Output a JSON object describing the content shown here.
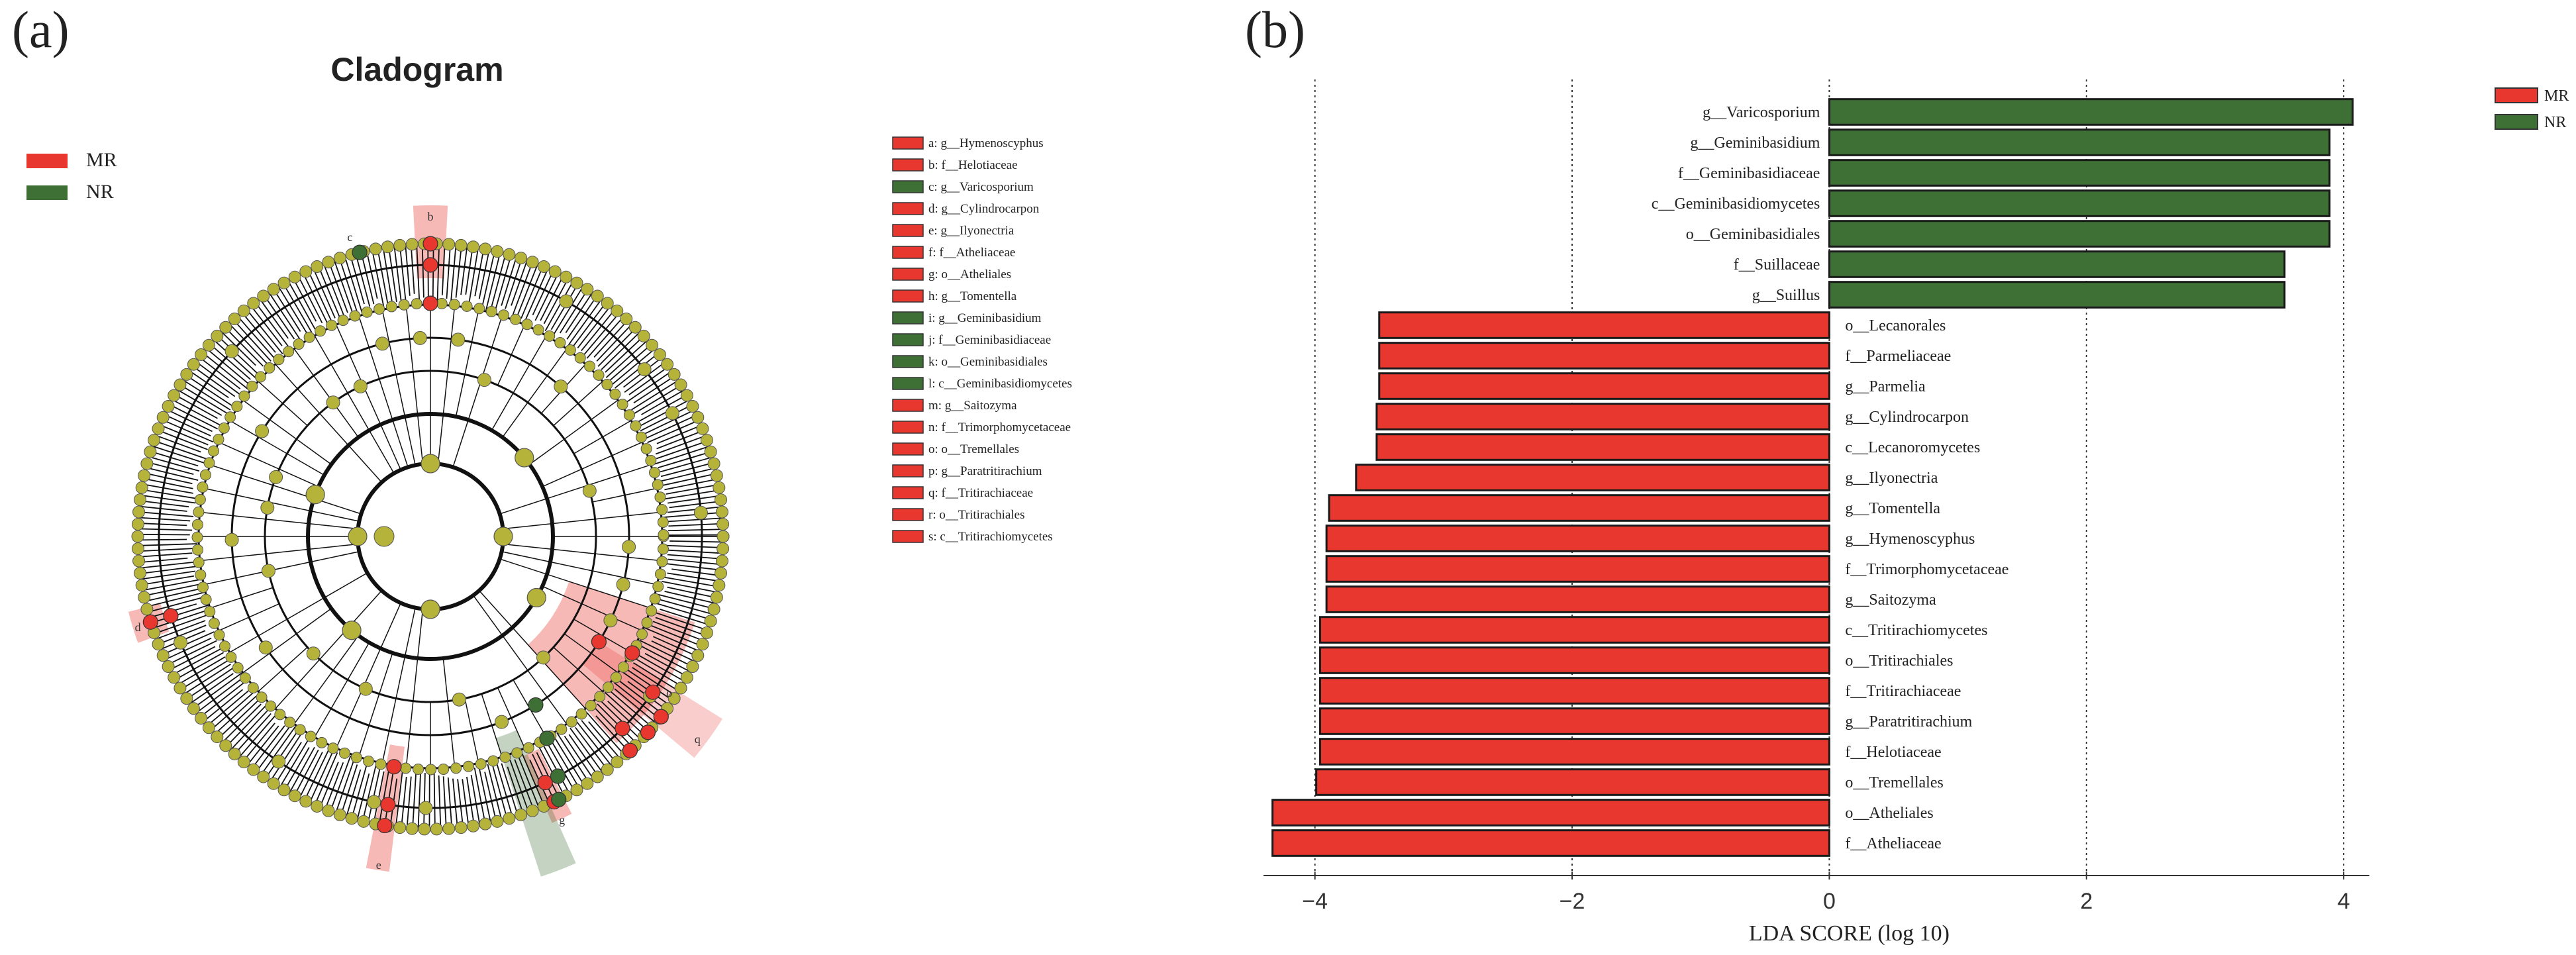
{
  "panels": {
    "a_label": "(a)",
    "b_label": "(b)"
  },
  "colors": {
    "MR": "#e8372f",
    "NR": "#3e6f35",
    "node": "#b5b33a",
    "edge": "#111111"
  },
  "chart_data": [
    {
      "type": "cladogram",
      "title": "Cladogram",
      "legend": [
        {
          "name": "MR",
          "color": "#e8372f"
        },
        {
          "name": "NR",
          "color": "#3e6f35"
        }
      ],
      "highlighted_taxa": [
        {
          "key": "a",
          "label": "a: g__Hymenoscyphus",
          "group": "MR"
        },
        {
          "key": "b",
          "label": "b: f__Helotiaceae",
          "group": "MR"
        },
        {
          "key": "c",
          "label": "c: g__Varicosporium",
          "group": "NR"
        },
        {
          "key": "d",
          "label": "d: g__Cylindrocarpon",
          "group": "MR"
        },
        {
          "key": "e",
          "label": "e: g__Ilyonectria",
          "group": "MR"
        },
        {
          "key": "f",
          "label": "f: f__Atheliaceae",
          "group": "MR"
        },
        {
          "key": "g",
          "label": "g: o__Atheliales",
          "group": "MR"
        },
        {
          "key": "h",
          "label": "h: g__Tomentella",
          "group": "MR"
        },
        {
          "key": "i",
          "label": "i: g__Geminibasidium",
          "group": "NR"
        },
        {
          "key": "j",
          "label": "j: f__Geminibasidiaceae",
          "group": "NR"
        },
        {
          "key": "k",
          "label": "k: o__Geminibasidiales",
          "group": "NR"
        },
        {
          "key": "l",
          "label": "l: c__Geminibasidiomycetes",
          "group": "NR"
        },
        {
          "key": "m",
          "label": "m: g__Saitozyma",
          "group": "MR"
        },
        {
          "key": "n",
          "label": "n: f__Trimorphomycetaceae",
          "group": "MR"
        },
        {
          "key": "o",
          "label": "o: o__Tremellales",
          "group": "MR"
        },
        {
          "key": "p",
          "label": "p: g__Paratritirachium",
          "group": "MR"
        },
        {
          "key": "q",
          "label": "q: f__Tritirachiaceae",
          "group": "MR"
        },
        {
          "key": "r",
          "label": "r: o__Tritirachiales",
          "group": "MR"
        },
        {
          "key": "s",
          "label": "s: c__Tritirachiomycetes",
          "group": "MR"
        }
      ]
    },
    {
      "type": "bar",
      "orientation": "horizontal",
      "xlabel": "LDA SCORE (log 10)",
      "xlim": [
        -4.4,
        4.2
      ],
      "xticks": [
        -4,
        -2,
        0,
        2,
        4
      ],
      "xtick_labels": [
        "−4",
        "−2",
        "0",
        "2",
        "4"
      ],
      "grid": "vertical dotted",
      "legend_position": "top-right",
      "legend": [
        {
          "name": "MR",
          "color": "#e8372f"
        },
        {
          "name": "NR",
          "color": "#3e6f35"
        }
      ],
      "bars": [
        {
          "taxon": "g__Varicosporium",
          "value": 4.07,
          "group": "NR"
        },
        {
          "taxon": "g__Geminibasidium",
          "value": 3.89,
          "group": "NR"
        },
        {
          "taxon": "f__Geminibasidiaceae",
          "value": 3.89,
          "group": "NR"
        },
        {
          "taxon": "c__Geminibasidiomycetes",
          "value": 3.89,
          "group": "NR"
        },
        {
          "taxon": "o__Geminibasidiales",
          "value": 3.89,
          "group": "NR"
        },
        {
          "taxon": "f__Suillaceae",
          "value": 3.54,
          "group": "NR"
        },
        {
          "taxon": "g__Suillus",
          "value": 3.54,
          "group": "NR"
        },
        {
          "taxon": "o__Lecanorales",
          "value": -3.5,
          "group": "MR"
        },
        {
          "taxon": "f__Parmeliaceae",
          "value": -3.5,
          "group": "MR"
        },
        {
          "taxon": "g__Parmelia",
          "value": -3.5,
          "group": "MR"
        },
        {
          "taxon": "g__Cylindrocarpon",
          "value": -3.52,
          "group": "MR"
        },
        {
          "taxon": "c__Lecanoromycetes",
          "value": -3.52,
          "group": "MR"
        },
        {
          "taxon": "g__Ilyonectria",
          "value": -3.68,
          "group": "MR"
        },
        {
          "taxon": "g__Tomentella",
          "value": -3.89,
          "group": "MR"
        },
        {
          "taxon": "g__Hymenoscyphus",
          "value": -3.91,
          "group": "MR"
        },
        {
          "taxon": "f__Trimorphomycetaceae",
          "value": -3.91,
          "group": "MR"
        },
        {
          "taxon": "g__Saitozyma",
          "value": -3.91,
          "group": "MR"
        },
        {
          "taxon": "c__Tritirachiomycetes",
          "value": -3.96,
          "group": "MR"
        },
        {
          "taxon": "o__Tritirachiales",
          "value": -3.96,
          "group": "MR"
        },
        {
          "taxon": "f__Tritirachiaceae",
          "value": -3.96,
          "group": "MR"
        },
        {
          "taxon": "g__Paratritirachium",
          "value": -3.96,
          "group": "MR"
        },
        {
          "taxon": "f__Helotiaceae",
          "value": -3.96,
          "group": "MR"
        },
        {
          "taxon": "o__Tremellales",
          "value": -3.99,
          "group": "MR"
        },
        {
          "taxon": "o__Atheliales",
          "value": -4.33,
          "group": "MR"
        },
        {
          "taxon": "f__Atheliaceae",
          "value": -4.33,
          "group": "MR"
        }
      ]
    }
  ]
}
